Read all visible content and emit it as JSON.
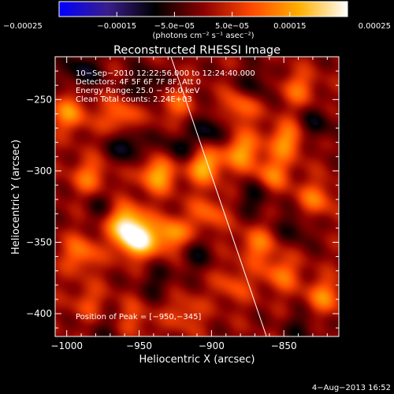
{
  "chart_data": {
    "type": "heatmap",
    "title": "Reconstructed RHESSI Image",
    "xlabel": "Heliocentric X (arcsec)",
    "ylabel": "Heliocentric Y (arcsec)",
    "x_ticks": [
      "−1000",
      "−950",
      "−900",
      "−850"
    ],
    "x_tick_values": [
      -1000,
      -950,
      -900,
      -850
    ],
    "y_ticks": [
      "−400",
      "−350",
      "−300",
      "−250"
    ],
    "y_tick_values": [
      -400,
      -350,
      -300,
      -250
    ],
    "xlim": [
      -1008,
      -812
    ],
    "ylim": [
      -416,
      -220
    ],
    "colorbar": {
      "ticks": [
        "−0.00025",
        "−0.00015",
        "−5.0e−05",
        "5.0e−05",
        "0.00015",
        "0.00025"
      ],
      "tick_values": [
        -0.00025,
        -0.00015,
        -5e-05,
        5e-05,
        0.00015,
        0.00025
      ],
      "range": [
        -0.00025,
        0.00025
      ],
      "unit_label": "(photons cm⁻² s⁻¹ asec⁻²)",
      "colors": [
        "#0000ff",
        "#3a1e8c",
        "#000000",
        "#8a0000",
        "#ff4800",
        "#ffb000",
        "#ffffff"
      ]
    },
    "annotations": [
      "10−Sep−2010 12:22:56.000 to 12:24:40.000",
      "Detectors: 4F 5F 6F 7F 8F, Att 0",
      "Energy Range: 25.0 − 50.0 keV",
      "Clean    Total counts: 2.24E+03"
    ],
    "peak_label": "Position of Peak = [−950,−345]",
    "peak_position": [
      -950,
      -345
    ],
    "limb_line": [
      [
        -928,
        -220
      ],
      [
        -862,
        -416
      ]
    ],
    "sources": [
      {
        "x": -952,
        "y": -348,
        "v": 0.00025
      },
      {
        "x": -960,
        "y": -335,
        "v": 0.00018
      },
      {
        "x": -928,
        "y": -345,
        "v": 0.00016
      },
      {
        "x": -937,
        "y": -302,
        "v": 0.00017
      },
      {
        "x": -905,
        "y": -296,
        "v": 0.00017
      },
      {
        "x": -880,
        "y": -286,
        "v": 0.00015
      },
      {
        "x": -848,
        "y": -278,
        "v": 0.00014
      },
      {
        "x": -963,
        "y": -262,
        "v": 0.00012
      },
      {
        "x": -998,
        "y": -260,
        "v": 0.00013
      },
      {
        "x": -984,
        "y": -304,
        "v": 0.00011
      },
      {
        "x": -990,
        "y": -358,
        "v": 0.00012
      },
      {
        "x": -925,
        "y": -253,
        "v": 9e-05
      },
      {
        "x": -880,
        "y": -255,
        "v": 0.00012
      },
      {
        "x": -840,
        "y": -242,
        "v": 0.0001
      },
      {
        "x": -858,
        "y": -302,
        "v": 0.00012
      },
      {
        "x": -828,
        "y": -320,
        "v": 0.00011
      },
      {
        "x": -868,
        "y": -352,
        "v": 0.00011
      },
      {
        "x": -902,
        "y": -330,
        "v": 0.0001
      },
      {
        "x": -885,
        "y": -380,
        "v": 8e-05
      },
      {
        "x": -852,
        "y": -372,
        "v": 0.00011
      },
      {
        "x": -822,
        "y": -388,
        "v": 0.00012
      },
      {
        "x": -955,
        "y": -404,
        "v": 8e-05
      },
      {
        "x": -918,
        "y": -400,
        "v": 8e-05
      },
      {
        "x": -985,
        "y": -392,
        "v": 7e-05
      },
      {
        "x": -958,
        "y": -282,
        "v": -0.00011
      },
      {
        "x": -990,
        "y": -230,
        "v": -0.0001
      },
      {
        "x": -945,
        "y": -240,
        "v": -9e-05
      },
      {
        "x": -900,
        "y": -272,
        "v": -0.0001
      },
      {
        "x": -870,
        "y": -240,
        "v": -8e-05
      },
      {
        "x": -923,
        "y": -285,
        "v": -9e-05
      },
      {
        "x": -870,
        "y": -318,
        "v": -8e-05
      },
      {
        "x": -912,
        "y": -358,
        "v": -7e-05
      },
      {
        "x": -842,
        "y": -340,
        "v": -7e-05
      },
      {
        "x": -828,
        "y": -268,
        "v": -8e-05
      },
      {
        "x": -975,
        "y": -325,
        "v": -6e-05
      },
      {
        "x": -938,
        "y": -378,
        "v": -6e-05
      },
      {
        "x": -970,
        "y": -410,
        "v": -5e-05
      },
      {
        "x": -838,
        "y": -410,
        "v": -6e-05
      }
    ]
  },
  "timestamp": "4−Aug−2013 16:52"
}
